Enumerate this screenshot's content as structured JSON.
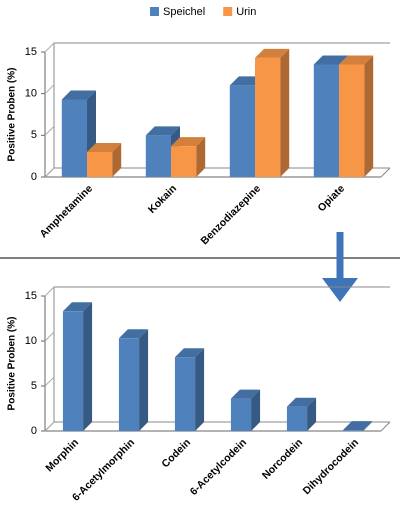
{
  "chart_data": [
    {
      "type": "bar",
      "ylabel": "Positive Proben (%)",
      "categories": [
        "Amphetamine",
        "Kokain",
        "Benzodiazepine",
        "Opiate"
      ],
      "series": [
        {
          "name": "Speichel",
          "color": "#4f81bd",
          "values": [
            9.3,
            5.0,
            11.0,
            13.5
          ]
        },
        {
          "name": "Urin",
          "color": "#f79646",
          "values": [
            3.0,
            3.7,
            14.3,
            13.5
          ]
        }
      ],
      "ylim": [
        0,
        15
      ],
      "yticks": [
        0,
        5,
        10,
        15
      ],
      "legend": "top"
    },
    {
      "type": "bar",
      "ylabel": "Positive Proben (%)",
      "categories": [
        "Morphin",
        "6-Acetylmorphin",
        "Codein",
        "6-Acetylcodein",
        "Norcodein",
        "Dihydrocodein"
      ],
      "values": [
        13.3,
        10.3,
        8.2,
        3.6,
        2.7,
        0.1
      ],
      "color": "#4f81bd",
      "ylim": [
        0,
        15
      ],
      "yticks": [
        0,
        5,
        10,
        15
      ]
    }
  ]
}
